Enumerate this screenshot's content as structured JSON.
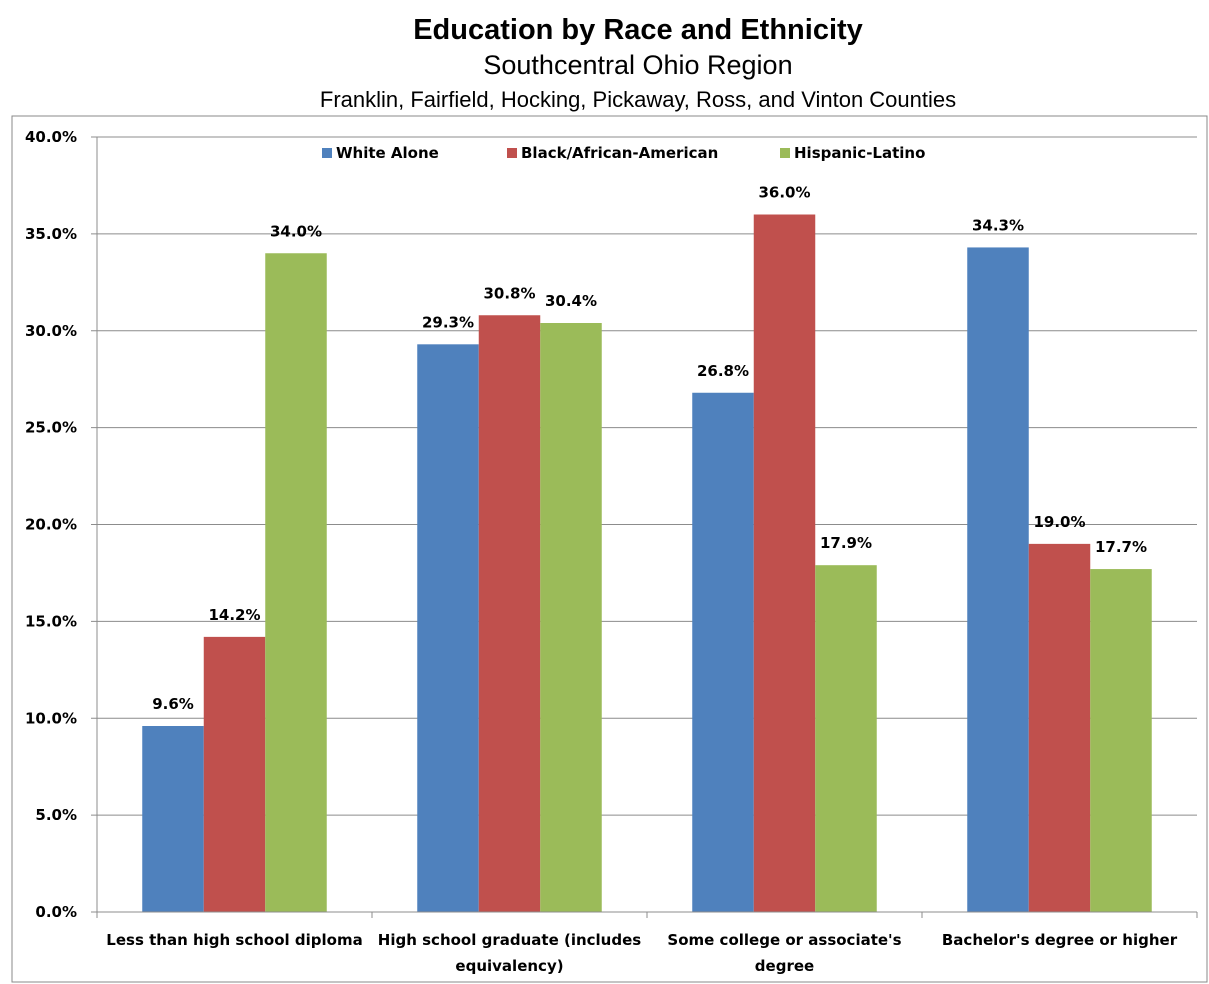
{
  "chart_data": {
    "type": "bar",
    "title": "Education by Race and Ethnicity",
    "subtitle": "Southcentral Ohio Region",
    "subtitle2": "Franklin, Fairfield, Hocking, Pickaway, Ross, and Vinton Counties",
    "categories": [
      [
        "Less than high school diploma"
      ],
      [
        "High school graduate (includes",
        "equivalency)"
      ],
      [
        "Some college or associate's",
        "degree"
      ],
      [
        "Bachelor's degree or higher"
      ]
    ],
    "series": [
      {
        "name": "White Alone",
        "color": "#4f81bd",
        "values": [
          9.6,
          29.3,
          26.8,
          34.3
        ]
      },
      {
        "name": "Black/African-American",
        "color": "#c0504d",
        "values": [
          14.2,
          30.8,
          36.0,
          19.0
        ]
      },
      {
        "name": "Hispanic-Latino",
        "color": "#9bbb59",
        "values": [
          34.0,
          30.4,
          17.9,
          17.7
        ]
      }
    ],
    "data_labels": [
      [
        "9.6%",
        "29.3%",
        "26.8%",
        "34.3%"
      ],
      [
        "14.2%",
        "30.8%",
        "36.0%",
        "19.0%"
      ],
      [
        "34.0%",
        "30.4%",
        "17.9%",
        "17.7%"
      ]
    ],
    "yticks": [
      "0.0%",
      "5.0%",
      "10.0%",
      "15.0%",
      "20.0%",
      "25.0%",
      "30.0%",
      "35.0%",
      "40.0%"
    ],
    "ylim": [
      0,
      40
    ],
    "ytick_step": 5,
    "grid": true,
    "legend_position": "top",
    "xlabel": "",
    "ylabel": ""
  }
}
